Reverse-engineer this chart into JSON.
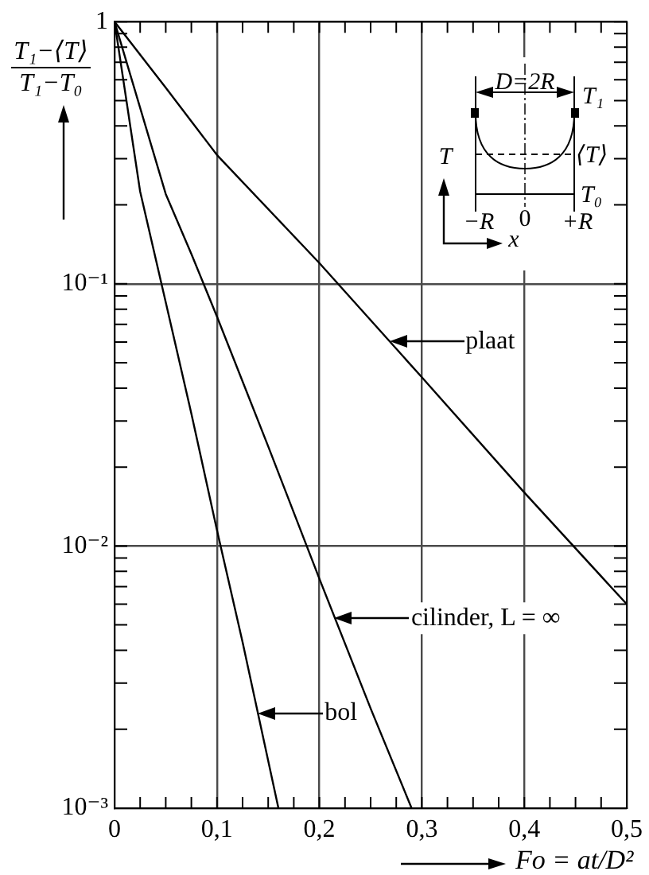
{
  "chart_data": {
    "type": "line",
    "xlabel": "Fo = at/D²",
    "ylabel": "T₁−⟨T⟩\nT₁−T₀",
    "log": true,
    "grid": true,
    "xlim": [
      0,
      0.5
    ],
    "ylim": [
      0.001,
      1
    ],
    "xticks": [
      0,
      {
        "value": 0.025,
        "label": null
      },
      {
        "value": 0.05,
        "label": null
      },
      {
        "value": 0.075,
        "label": null
      },
      {
        "value": 0.1,
        "label": "0,1"
      },
      {
        "value": 0.125,
        "label": null
      },
      {
        "value": 0.15,
        "label": null
      },
      {
        "value": 0.175,
        "label": null
      },
      {
        "value": 0.2,
        "label": "0,2"
      },
      {
        "value": 0.225,
        "label": null
      },
      {
        "value": 0.25,
        "label": null
      },
      {
        "value": 0.275,
        "label": null
      },
      {
        "value": 0.3,
        "label": "0,3"
      },
      {
        "value": 0.325,
        "label": null
      },
      {
        "value": 0.35,
        "label": null
      },
      {
        "value": 0.375,
        "label": null
      },
      {
        "value": 0.4,
        "label": "0,4"
      },
      {
        "value": 0.425,
        "label": null
      },
      {
        "value": 0.45,
        "label": null
      },
      {
        "value": 0.475,
        "label": null
      },
      {
        "value": 0.5,
        "label": "0,5"
      }
    ],
    "yticks": [
      {
        "value": 0.001,
        "label": "10⁻³"
      },
      {
        "value": 0.002,
        "label": null
      },
      {
        "value": 0.003,
        "label": null
      },
      {
        "value": 0.004,
        "label": null
      },
      {
        "value": 0.005,
        "label": null
      },
      {
        "value": 0.006,
        "label": null
      },
      {
        "value": 0.007,
        "label": null
      },
      {
        "value": 0.008,
        "label": null
      },
      {
        "value": 0.009,
        "label": null
      },
      {
        "value": 0.01,
        "label": "10⁻²"
      },
      {
        "value": 0.02,
        "label": null
      },
      {
        "value": 0.03,
        "label": null
      },
      {
        "value": 0.04,
        "label": null
      },
      {
        "value": 0.05,
        "label": null
      },
      {
        "value": 0.06,
        "label": null
      },
      {
        "value": 0.07,
        "label": null
      },
      {
        "value": 0.08,
        "label": null
      },
      {
        "value": 0.09,
        "label": null
      },
      {
        "value": 0.1,
        "label": "10⁻¹"
      },
      {
        "value": 0.2,
        "label": null
      },
      {
        "value": 0.3,
        "label": null
      },
      {
        "value": 0.4,
        "label": null
      },
      {
        "value": 0.5,
        "label": null
      },
      {
        "value": 0.6,
        "label": null
      },
      {
        "value": 0.7,
        "label": null
      },
      {
        "value": 0.8,
        "label": null
      },
      {
        "value": 0.9,
        "label": null
      },
      1
    ],
    "series": [
      {
        "color": "#000000",
        "x": [
          0,
          0.05,
          0.1,
          0.2,
          0.3,
          0.4,
          0.5
        ],
        "values": [
          1,
          0.56,
          0.31,
          0.12,
          0.044,
          0.016,
          0.006
        ]
      },
      {
        "color": "#000000",
        "x": [
          0,
          0.05,
          0.075,
          0.1,
          0.15,
          0.2,
          0.25,
          0.29
        ],
        "values": [
          1,
          0.22,
          0.13,
          0.075,
          0.024,
          0.0075,
          0.0024,
          0.001
        ]
      },
      {
        "color": "#000000",
        "x": [
          0,
          0.025,
          0.05,
          0.075,
          0.1,
          0.125,
          0.16
        ],
        "values": [
          1,
          0.225,
          0.085,
          0.032,
          0.0115,
          0.0043,
          0.001
        ]
      }
    ],
    "annotations": [
      {
        "text": "plaat",
        "x": 0.268,
        "y": 0.06
      },
      {
        "text": "cilinder, L = ∞",
        "x": 0.215,
        "y": 0.0053
      },
      {
        "text": "bol",
        "x": 0.14,
        "y": 0.0023
      },
      "D=2R",
      "T₁",
      "T",
      "⟨T⟩",
      "T₀",
      "−R",
      "0",
      "+R",
      "x"
    ]
  }
}
